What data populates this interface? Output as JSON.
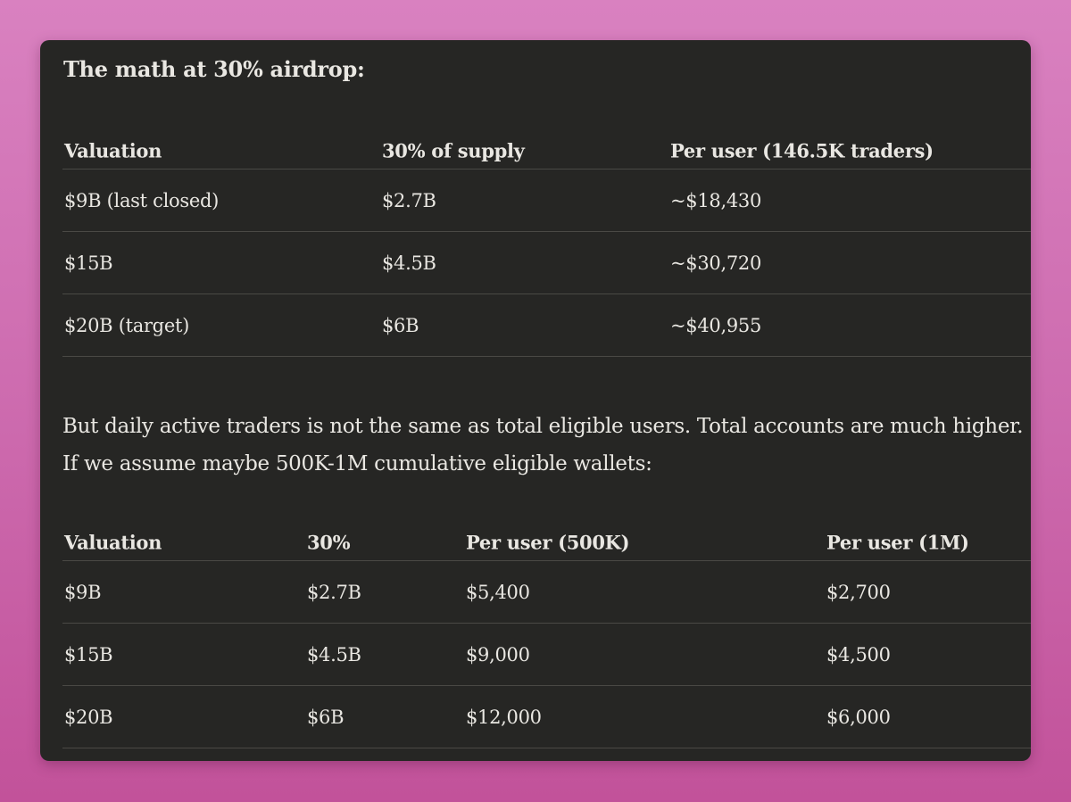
{
  "title": "The math at 30% airdrop:",
  "table1": {
    "headers": [
      "Valuation",
      "30% of supply",
      "Per user (146.5K traders)"
    ],
    "rows": [
      [
        "$9B (last closed)",
        "$2.7B",
        "~$18,430"
      ],
      [
        "$15B",
        "$4.5B",
        "~$30,720"
      ],
      [
        "$20B (target)",
        "$6B",
        "~$40,955"
      ]
    ]
  },
  "paragraph": "But daily active traders is not the same as total eligible users. Total accounts are much higher. If we assume maybe 500K-1M cumulative eligible wallets:",
  "table2": {
    "headers": [
      "Valuation",
      "30%",
      "Per user (500K)",
      "Per user (1M)"
    ],
    "rows": [
      [
        "$9B",
        "$2.7B",
        "$5,400",
        "$2,700"
      ],
      [
        "$15B",
        "$4.5B",
        "$9,000",
        "$4,500"
      ],
      [
        "$20B",
        "$6B",
        "$12,000",
        "$6,000"
      ]
    ]
  }
}
